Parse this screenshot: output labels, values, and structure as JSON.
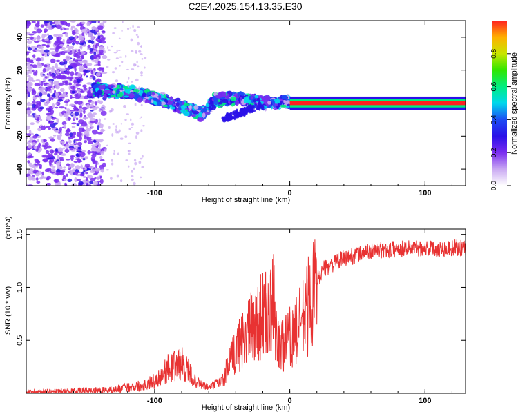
{
  "title": "C2E4.2025.154.13.35.E30",
  "chart_data": [
    {
      "type": "heatmap",
      "xlabel": "Height of straight line (km)",
      "ylabel": "Frequency (Hz)",
      "xlim": [
        -195,
        130
      ],
      "ylim": [
        -50,
        50
      ],
      "xticks": [
        -100,
        0,
        100
      ],
      "yticks": [
        -40,
        -20,
        0,
        20,
        40
      ],
      "colorbar": {
        "label": "Normalized spectral amplitude",
        "range": [
          0,
          1
        ],
        "ticks": [
          0.0,
          0.2,
          0.4,
          0.6,
          0.8
        ],
        "tick_labels": [
          "0.0",
          "0.2",
          "0.4",
          "0.6",
          "0.8"
        ],
        "colors": [
          "#ffffff",
          "#c9a8f2",
          "#7a2cf0",
          "#2a10e8",
          "#1c4cf4",
          "#00d8ec",
          "#00ee80",
          "#30e600",
          "#c8e600",
          "#ffb000",
          "#ff2020"
        ]
      },
      "features": [
        {
          "name": "broadband noise",
          "x_range": [
            -195,
            -137
          ],
          "y_range": [
            -50,
            50
          ],
          "amplitude": 0.15
        },
        {
          "name": "descending trace",
          "points": [
            [
              -145,
              8
            ],
            [
              -120,
              7
            ],
            [
              -100,
              3
            ],
            [
              -80,
              -2
            ],
            [
              -65,
              -7
            ],
            [
              -55,
              2
            ],
            [
              -40,
              3
            ],
            [
              -20,
              0
            ],
            [
              0,
              1
            ]
          ],
          "amplitude": 0.4
        },
        {
          "name": "stable line",
          "x_range": [
            0,
            130
          ],
          "y": 0,
          "amplitude": 0.95
        }
      ]
    },
    {
      "type": "line",
      "xlabel": "Height of straight line (km)",
      "ylabel": "SNR (10 * v/v)",
      "y_multiplier": "(x10^4)",
      "xlim": [
        -195,
        130
      ],
      "ylim": [
        0,
        1.55
      ],
      "xticks": [
        -100,
        0,
        100
      ],
      "yticks": [
        0.5,
        1.0,
        1.5
      ],
      "ytick_labels": [
        "0.5",
        "1.0",
        "1.5"
      ],
      "color": "#e83232",
      "series": [
        {
          "x": [
            -195,
            -170,
            -150,
            -140,
            -130,
            -120,
            -110,
            -100,
            -90,
            -85,
            -80,
            -75,
            -70,
            -65,
            -60,
            -50,
            -45,
            -40,
            -35,
            -30,
            -25,
            -20,
            -15,
            -12,
            -10,
            -5,
            0,
            5,
            10,
            15,
            20,
            25,
            30,
            40,
            50,
            60,
            70,
            80,
            90,
            100,
            110,
            120,
            130
          ],
          "y": [
            0.02,
            0.02,
            0.03,
            0.03,
            0.04,
            0.06,
            0.08,
            0.12,
            0.25,
            0.28,
            0.3,
            0.22,
            0.12,
            0.08,
            0.06,
            0.12,
            0.28,
            0.42,
            0.55,
            0.62,
            0.7,
            0.8,
            0.75,
            0.9,
            0.55,
            0.48,
            0.55,
            0.62,
            0.75,
            0.92,
            1.08,
            1.18,
            1.22,
            1.28,
            1.32,
            1.35,
            1.36,
            1.37,
            1.38,
            1.38,
            1.37,
            1.38,
            1.38
          ]
        }
      ]
    }
  ]
}
